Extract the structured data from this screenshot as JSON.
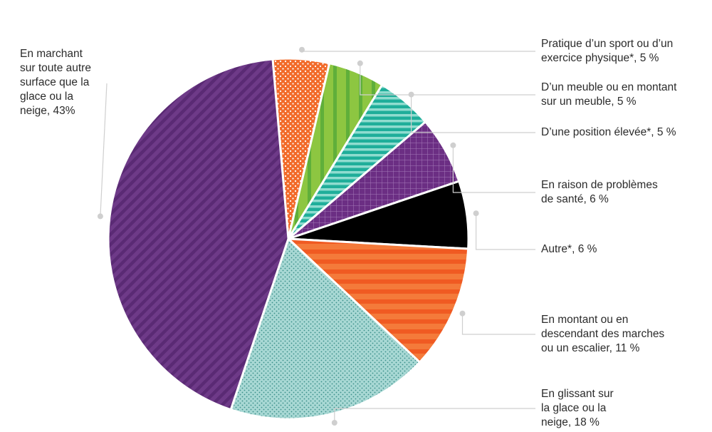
{
  "chart_data": {
    "type": "pie",
    "slices": [
      {
        "label": "Pratique d’un sport ou d’un exercice physique*, 5 %",
        "lines": [
          "Pratique d’un sport ou d’un",
          "exercice physique*, 5 %"
        ],
        "value": 5,
        "color": "#f26b2a",
        "pattern": "dots-orange",
        "side": "right"
      },
      {
        "label": "D’un meuble ou en montant sur un meuble, 5 %",
        "lines": [
          "D’un meuble ou en montant",
          "sur un meuble, 5 %"
        ],
        "value": 5,
        "color": "#8dc641",
        "pattern": "vstripes-green",
        "side": "right"
      },
      {
        "label": "D’une position élevée*, 5 %",
        "lines": [
          "D’une position élevée*, 5 %"
        ],
        "value": 5,
        "color": "#1fae9a",
        "pattern": "hstripes-teal",
        "side": "right"
      },
      {
        "label": "En raison de problèmes de santé, 6 %",
        "lines": [
          "En raison de problèmes",
          "de santé, 6 %"
        ],
        "value": 6,
        "color": "#6b2e83",
        "pattern": "grid-purple",
        "side": "right"
      },
      {
        "label": "Autre*, 6 %",
        "lines": [
          "Autre*, 6 %"
        ],
        "value": 6,
        "color": "#000000",
        "pattern": "solid-black",
        "side": "right"
      },
      {
        "label": "En montant ou en descendant des marches ou un escalier, 11 %",
        "lines": [
          "En montant ou en",
          "descendant des marches",
          "ou un escalier, 11 %"
        ],
        "value": 11,
        "color": "#f26b2a",
        "pattern": "hstripes-orange",
        "side": "right"
      },
      {
        "label": "En glissant sur la glace ou la neige, 18 %",
        "lines": [
          "En glissant sur",
          "la glace ou la",
          "neige, 18 %"
        ],
        "value": 18,
        "color": "#9fd3cf",
        "pattern": "dots-teal",
        "side": "right"
      },
      {
        "label": "En marchant sur toute autre surface que la glace ou la neige, 43%",
        "lines": [
          "En marchant",
          "sur toute autre",
          "surface que la",
          "glace ou la",
          "neige, 43%"
        ],
        "value": 43,
        "color": "#6b2e83",
        "pattern": "diag-purple",
        "side": "left"
      }
    ]
  }
}
